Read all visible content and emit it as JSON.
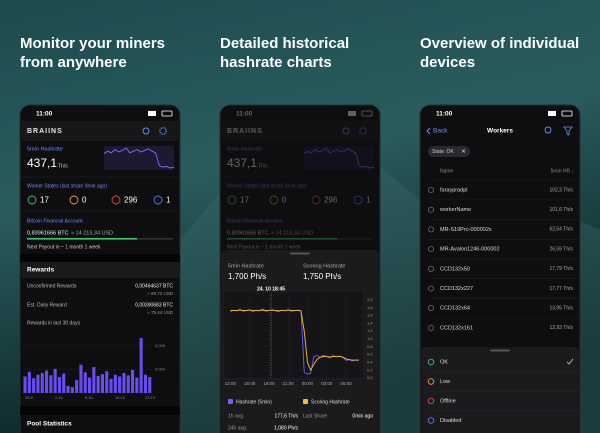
{
  "headings": [
    [
      "Monitor your miners",
      "from anywhere"
    ],
    [
      "Detailed historical",
      "hashrate charts"
    ],
    [
      "Overview of individual",
      "devices"
    ]
  ],
  "dashboard": {
    "time": "11:00",
    "brand": "BRAIINS",
    "hashrate_label": "5min Hashrate",
    "hashrate_value": "437,1",
    "hashrate_unit": "Th/s",
    "hashrate_sparkline": [
      445,
      448,
      446,
      450,
      447,
      449,
      452,
      446,
      448,
      450,
      447,
      449,
      451,
      448,
      446,
      430,
      428,
      429,
      427,
      428
    ],
    "worker_states_label": "Worker States (last share 0min ago)",
    "worker_states": [
      17,
      0,
      296,
      1
    ],
    "account_label": "Bitcoin Financial Account",
    "balance_btc": "0,83961666 BTC",
    "balance_usd": "≈ 14 213,34 USD",
    "next_payout": "Next Payout in ~ 1 month 1 week",
    "rewards_title": "Rewards",
    "unconfirmed_label": "Unconfirmed Rewards",
    "unconfirmed_btc": "0,00464637 BTC",
    "unconfirmed_usd": "≈ 89,72 USD",
    "daily_label": "Est. Daily Reward",
    "daily_btc": "0,00390683 BTC",
    "daily_usd": "≈ 75,44 USD",
    "rewards_chart": {
      "title": "Rewards in last 30 days",
      "values": [
        0.0028,
        0.0036,
        0.0025,
        0.0031,
        0.0034,
        0.0038,
        0.003,
        0.0041,
        0.0027,
        0.0033,
        0.0012,
        0.001,
        0.0022,
        0.0048,
        0.0035,
        0.0026,
        0.0044,
        0.0029,
        0.0032,
        0.0037,
        0.0024,
        0.0031,
        0.0028,
        0.0034,
        0.003,
        0.0039,
        0.0026,
        0.0093,
        0.0031,
        0.0027
      ],
      "ylim": [
        0,
        0.01
      ],
      "yticks": [
        {
          "value": 0.004,
          "label": "0,004"
        },
        {
          "value": 0.008,
          "label": "0,008"
        }
      ],
      "xtick_labels": [
        "25.9",
        "2.10",
        "9.10",
        "16.10",
        "23.10"
      ]
    },
    "pool_stats": "Pool Statistics"
  },
  "history": {
    "hashrate_label": "5min Hashrate",
    "hashrate_value": "1,700 Ph/s",
    "scoring_label": "Scoring Hashrate",
    "scoring_value": "1,750 Ph/s",
    "tooltip": "24. 10 18:45",
    "chart": {
      "x": [
        0,
        0.5,
        1,
        1.5,
        2,
        2.5,
        3,
        3.5,
        4,
        4.5,
        5,
        5.5,
        6,
        6.5,
        7,
        7.5,
        8,
        8.5,
        9,
        9.5,
        10,
        10.5,
        11,
        11.5,
        12,
        12.5,
        13,
        13.5,
        14,
        14.5,
        15,
        15.5,
        16,
        16.5,
        17,
        17.5,
        18,
        18.5,
        19,
        19.5,
        20
      ],
      "xlim": [
        -1,
        20.5
      ],
      "xticks": [
        {
          "value": 0,
          "label": "12:00"
        },
        {
          "value": 3,
          "label": "15:00"
        },
        {
          "value": 6,
          "label": "18:00"
        },
        {
          "value": 9,
          "label": "21:00"
        },
        {
          "value": 12,
          "label": "00:00"
        },
        {
          "value": 15,
          "label": "03:00"
        },
        {
          "value": 18,
          "label": "06:00"
        }
      ],
      "ylim": [
        0,
        2.1
      ],
      "yticks": [
        {
          "value": 0,
          "label": "0,0"
        },
        {
          "value": 0.2,
          "label": "0,2"
        },
        {
          "value": 0.4,
          "label": "0,4"
        },
        {
          "value": 0.6,
          "label": "0,6"
        },
        {
          "value": 0.8,
          "label": "0,8"
        },
        {
          "value": 1,
          "label": "1,0"
        },
        {
          "value": 1.2,
          "label": "1,2"
        },
        {
          "value": 1.4,
          "label": "1,4"
        },
        {
          "value": 1.6,
          "label": "1,6"
        },
        {
          "value": 1.8,
          "label": "1,8"
        },
        {
          "value": 2,
          "label": "2,0"
        }
      ],
      "series": [
        {
          "name": "Hashrate (5min)",
          "color": "#7b5cff",
          "values": [
            1.7,
            1.74,
            1.72,
            1.76,
            1.71,
            1.73,
            1.75,
            1.7,
            1.74,
            1.72,
            1.77,
            1.71,
            1.73,
            1.75,
            1.72,
            1.7,
            1.74,
            1.72,
            1.75,
            1.71,
            1.73,
            1.74,
            1.72,
            0.15,
            0.1,
            0.12,
            0.55,
            0.57,
            0.53,
            0.58,
            0.55,
            0.52,
            0.57,
            0.54,
            0.56,
            0.53,
            0.45,
            0.47,
            0.44,
            0.46,
            0.45
          ]
        },
        {
          "name": "Scoring Hashrate",
          "color": "#f2c230",
          "values": [
            1.73,
            1.73,
            1.73,
            1.74,
            1.73,
            1.73,
            1.74,
            1.73,
            1.73,
            1.73,
            1.74,
            1.73,
            1.73,
            1.74,
            1.73,
            1.72,
            1.73,
            1.73,
            1.74,
            1.73,
            1.73,
            1.73,
            1.72,
            1.2,
            0.4,
            0.2,
            0.35,
            0.48,
            0.53,
            0.55,
            0.55,
            0.54,
            0.55,
            0.55,
            0.55,
            0.54,
            0.49,
            0.47,
            0.46,
            0.46,
            0.46
          ]
        }
      ]
    },
    "stats": [
      {
        "label": "1h avg.",
        "value": "177,6 Th/s"
      },
      {
        "label": "Last Share",
        "value": "0min ago"
      },
      {
        "label": "24h avg.",
        "value": "1,080 Ph/s"
      }
    ]
  },
  "workers": {
    "back": "Back",
    "title": "Workers",
    "filter_chip": "State: OK",
    "col_name": "Name",
    "col_hashrate": "5min HR ↓",
    "rows": [
      [
        "faraypradpl",
        "102,3 Th/s"
      ],
      [
        "workerName",
        "101,6 Th/s"
      ],
      [
        "MR-S19Pro-000002x",
        "62,54 Th/s"
      ],
      [
        "MR-Avalon1246-000002",
        "26,59 Th/s"
      ],
      [
        "CCD132x50",
        "17,79 Th/s"
      ],
      [
        "CCD132x227",
        "17,77 Th/s"
      ],
      [
        "CCD132x64",
        "13,95 Th/s"
      ],
      [
        "CCD132x161",
        "12,93 Th/s"
      ]
    ],
    "state_options": [
      "OK",
      "Low",
      "Offline",
      "Disabled"
    ]
  }
}
